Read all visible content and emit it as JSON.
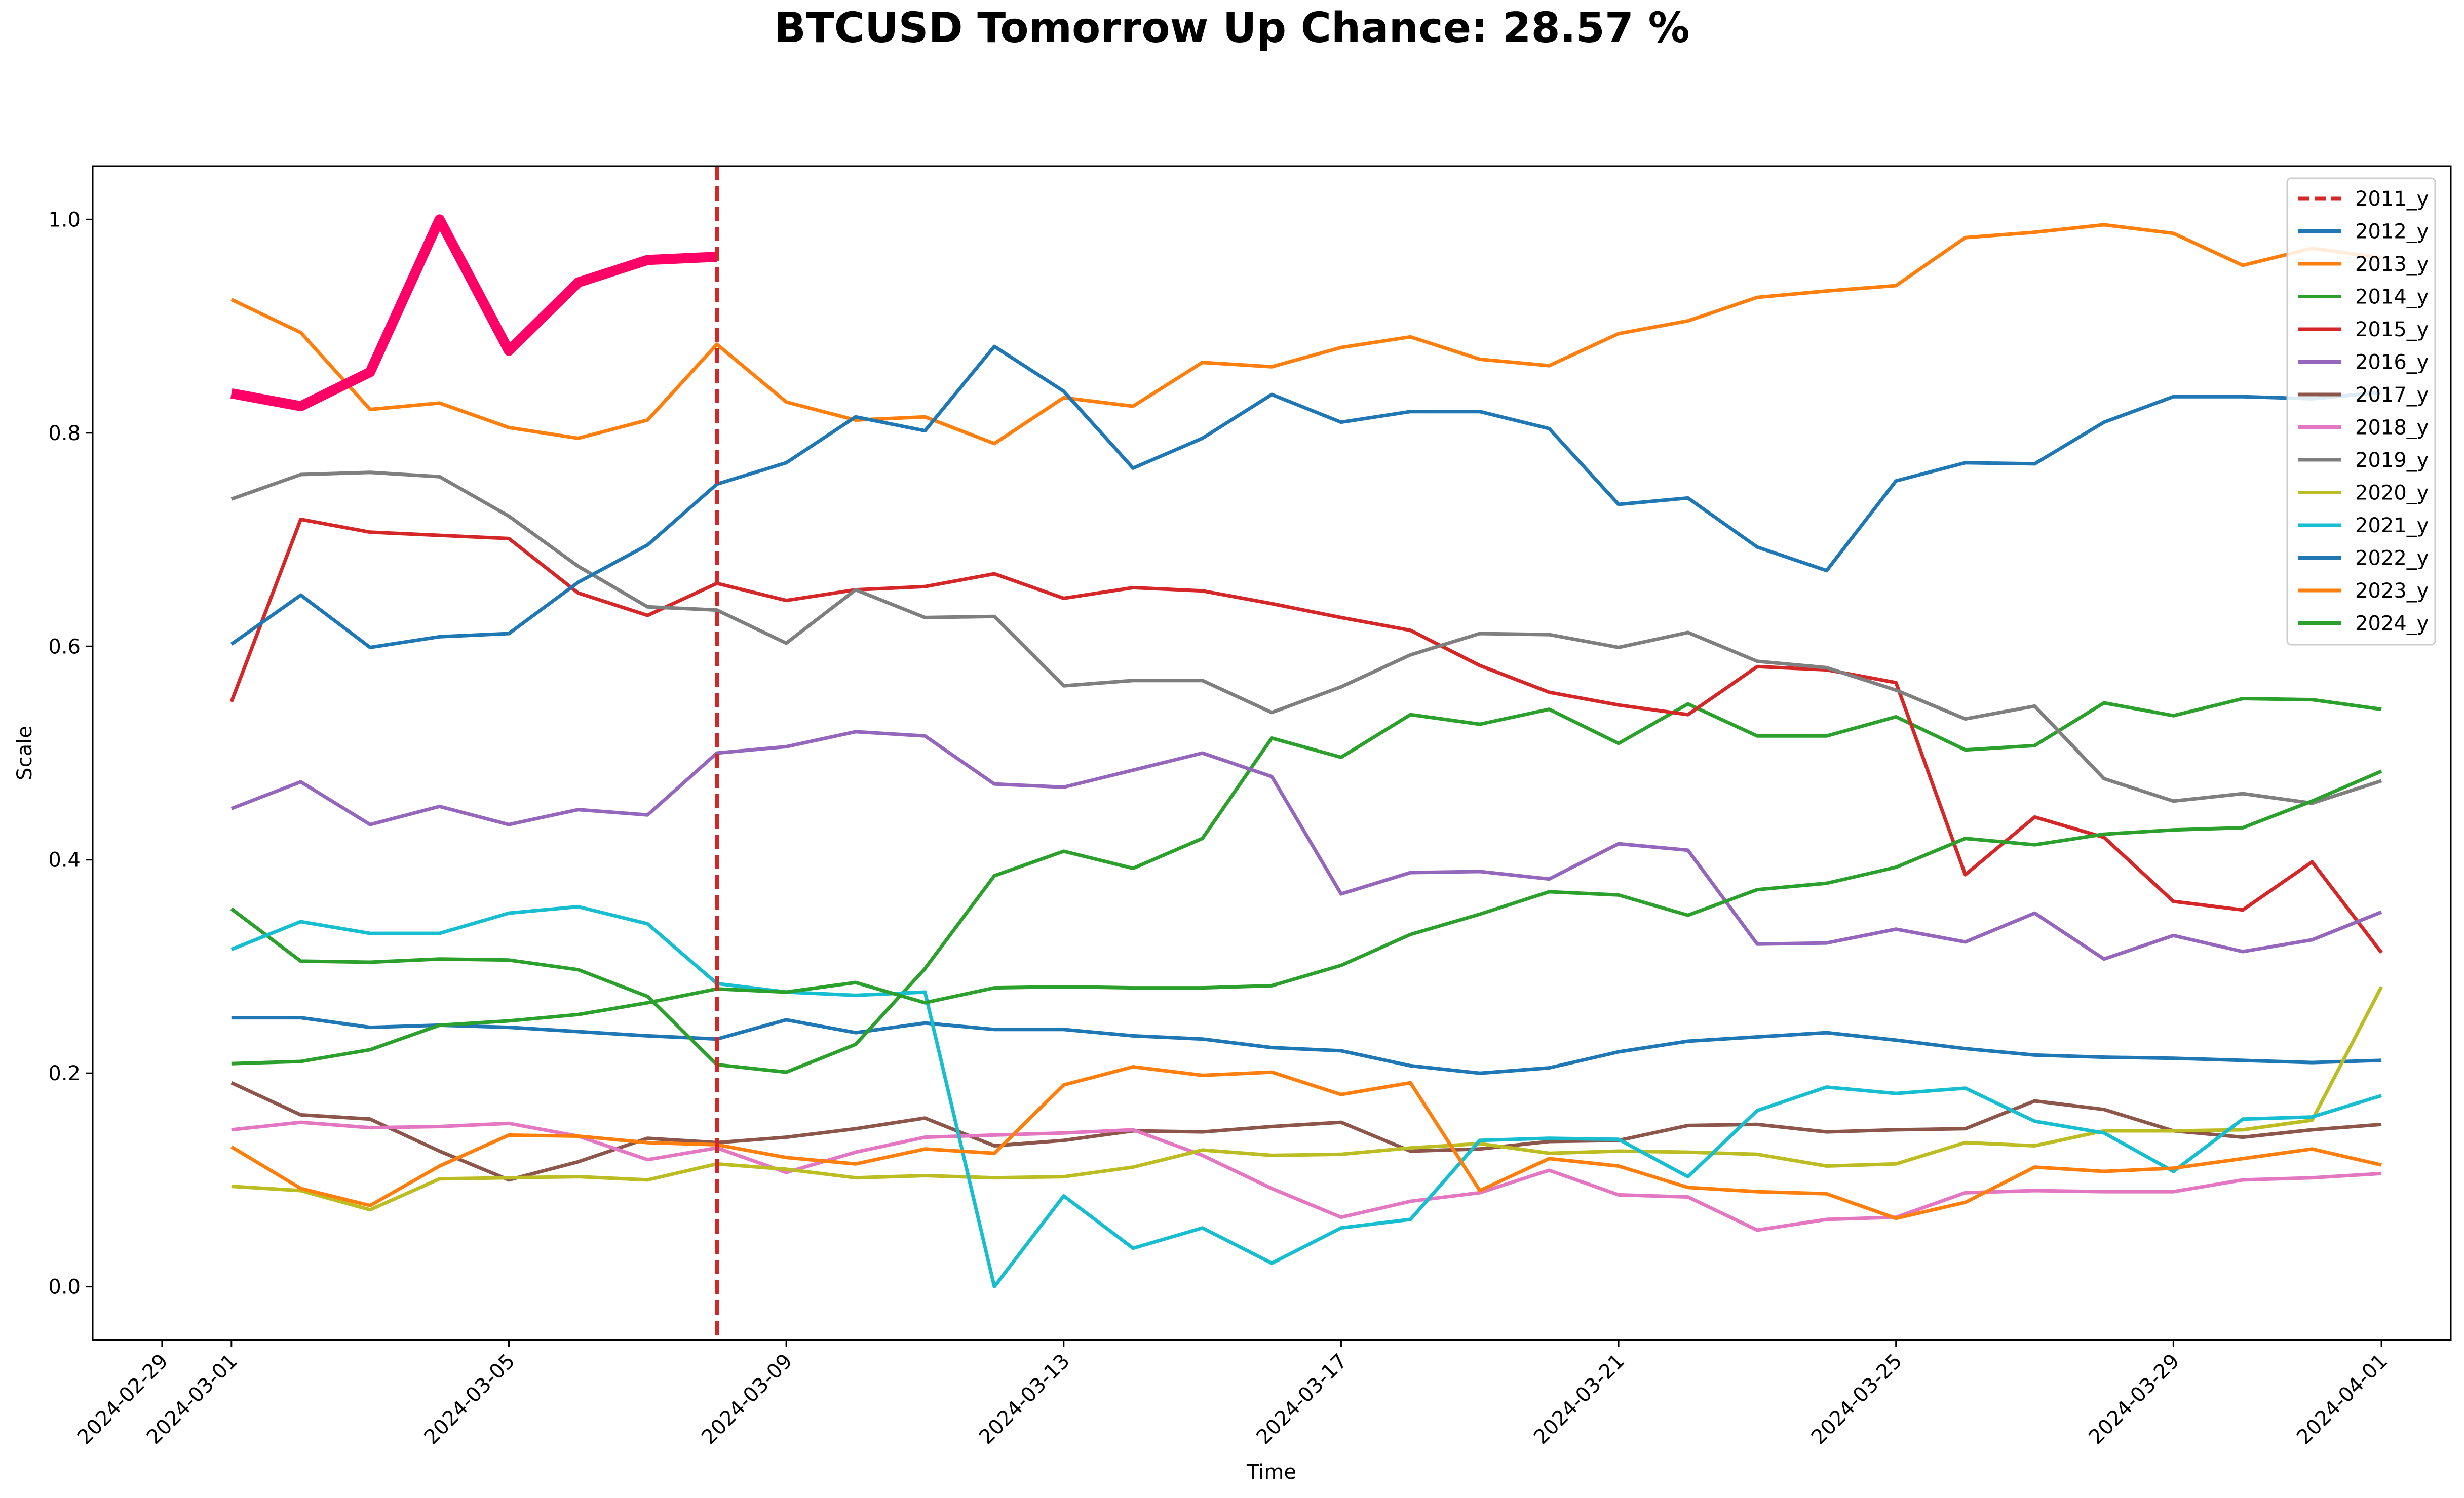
{
  "chart_data": {
    "type": "line",
    "title": "BTCUSD Tomorrow Up Chance: 28.57 %",
    "xlabel": "Time",
    "ylabel": "Scale",
    "xlim": [
      "2024-02-28",
      "2024-04-02"
    ],
    "ylim": [
      -0.05,
      1.05
    ],
    "x_ticks": [
      "2024-02-29",
      "2024-03-01",
      "2024-03-05",
      "2024-03-09",
      "2024-03-13",
      "2024-03-17",
      "2024-03-21",
      "2024-03-25",
      "2024-03-29",
      "2024-04-01"
    ],
    "y_ticks": [
      "0.0",
      "0.2",
      "0.4",
      "0.6",
      "0.8",
      "1.0"
    ],
    "legend_position": "top-right",
    "grid": false,
    "current_date_marker": {
      "name": "2011_y",
      "x": "2024-03-08",
      "color": "#d62728",
      "style": "dashed"
    },
    "x": [
      "2024-03-01",
      "2024-03-02",
      "2024-03-03",
      "2024-03-04",
      "2024-03-05",
      "2024-03-06",
      "2024-03-07",
      "2024-03-08",
      "2024-03-09",
      "2024-03-10",
      "2024-03-11",
      "2024-03-12",
      "2024-03-13",
      "2024-03-14",
      "2024-03-15",
      "2024-03-16",
      "2024-03-17",
      "2024-03-18",
      "2024-03-19",
      "2024-03-20",
      "2024-03-21",
      "2024-03-22",
      "2024-03-23",
      "2024-03-24",
      "2024-03-25",
      "2024-03-26",
      "2024-03-27",
      "2024-03-28",
      "2024-03-29",
      "2024-03-30",
      "2024-03-31",
      "2024-04-01"
    ],
    "series": [
      {
        "name": "2012_y",
        "color": "#1f77b4",
        "values": [
          0.252,
          0.252,
          0.243,
          0.245,
          0.243,
          0.239,
          0.235,
          0.232,
          0.25,
          0.238,
          0.247,
          0.241,
          0.241,
          0.235,
          0.232,
          0.224,
          0.221,
          0.207,
          0.2,
          0.205,
          0.22,
          0.23,
          0.234,
          0.238,
          0.231,
          0.223,
          0.217,
          0.215,
          0.214,
          0.212,
          0.21,
          0.212
        ]
      },
      {
        "name": "2013_y",
        "color": "#ff7f0e",
        "values": [
          0.925,
          0.894,
          0.822,
          0.828,
          0.805,
          0.795,
          0.812,
          0.883,
          0.829,
          0.812,
          0.815,
          0.79,
          0.833,
          0.825,
          0.866,
          0.862,
          0.88,
          0.89,
          0.869,
          0.863,
          0.893,
          0.905,
          0.927,
          0.933,
          0.938,
          0.983,
          0.988,
          0.995,
          0.987,
          0.957,
          0.973,
          0.964
        ]
      },
      {
        "name": "2014_y",
        "color": "#2ca02c",
        "values": [
          0.354,
          0.305,
          0.304,
          0.307,
          0.306,
          0.297,
          0.272,
          0.208,
          0.201,
          0.227,
          0.298,
          0.385,
          0.408,
          0.392,
          0.42,
          0.514,
          0.496,
          0.536,
          0.527,
          0.541,
          0.509,
          0.546,
          0.516,
          0.516,
          0.534,
          0.503,
          0.507,
          0.547,
          0.535,
          0.551,
          0.55,
          0.541
        ]
      },
      {
        "name": "2015_y",
        "color": "#d62728",
        "values": [
          0.548,
          0.719,
          0.707,
          0.704,
          0.701,
          0.65,
          0.629,
          0.659,
          0.643,
          0.653,
          0.656,
          0.668,
          0.645,
          0.655,
          0.652,
          0.64,
          0.627,
          0.615,
          0.582,
          0.557,
          0.545,
          0.536,
          0.581,
          0.578,
          0.566,
          0.386,
          0.44,
          0.421,
          0.361,
          0.353,
          0.398,
          0.313
        ]
      },
      {
        "name": "2016_y",
        "color": "#9467bd",
        "values": [
          0.448,
          0.473,
          0.433,
          0.45,
          0.433,
          0.447,
          0.442,
          0.5,
          0.506,
          0.52,
          0.516,
          0.471,
          0.468,
          0.484,
          0.5,
          0.478,
          0.368,
          0.388,
          0.389,
          0.382,
          0.415,
          0.409,
          0.321,
          0.322,
          0.335,
          0.323,
          0.35,
          0.307,
          0.329,
          0.314,
          0.325,
          0.351
        ]
      },
      {
        "name": "2017_y",
        "color": "#8c564b",
        "values": [
          0.191,
          0.161,
          0.157,
          0.127,
          0.1,
          0.117,
          0.139,
          0.135,
          0.14,
          0.148,
          0.158,
          0.132,
          0.137,
          0.146,
          0.145,
          0.15,
          0.154,
          0.127,
          0.129,
          0.136,
          0.137,
          0.151,
          0.152,
          0.145,
          0.147,
          0.148,
          0.174,
          0.166,
          0.146,
          0.14,
          0.147,
          0.152
        ]
      },
      {
        "name": "2018_y",
        "color": "#e377c2",
        "values": [
          0.147,
          0.154,
          0.149,
          0.15,
          0.153,
          0.141,
          0.119,
          0.13,
          0.107,
          0.126,
          0.14,
          0.142,
          0.144,
          0.147,
          0.123,
          0.092,
          0.065,
          0.08,
          0.088,
          0.109,
          0.086,
          0.084,
          0.053,
          0.063,
          0.065,
          0.088,
          0.09,
          0.089,
          0.089,
          0.1,
          0.102,
          0.106
        ]
      },
      {
        "name": "2019_y",
        "color": "#7f7f7f",
        "values": [
          0.738,
          0.761,
          0.763,
          0.759,
          0.722,
          0.675,
          0.637,
          0.634,
          0.603,
          0.653,
          0.627,
          0.628,
          0.563,
          0.568,
          0.568,
          0.538,
          0.562,
          0.592,
          0.612,
          0.611,
          0.599,
          0.613,
          0.586,
          0.58,
          0.559,
          0.532,
          0.544,
          0.476,
          0.455,
          0.462,
          0.453,
          0.474
        ]
      },
      {
        "name": "2020_y",
        "color": "#bcbd22",
        "values": [
          0.094,
          0.09,
          0.072,
          0.101,
          0.102,
          0.103,
          0.1,
          0.115,
          0.11,
          0.102,
          0.104,
          0.102,
          0.103,
          0.112,
          0.128,
          0.123,
          0.124,
          0.13,
          0.134,
          0.125,
          0.127,
          0.126,
          0.124,
          0.113,
          0.115,
          0.135,
          0.132,
          0.146,
          0.146,
          0.147,
          0.156,
          0.281
        ]
      },
      {
        "name": "2021_y",
        "color": "#17becf",
        "values": [
          0.316,
          0.342,
          0.331,
          0.331,
          0.35,
          0.356,
          0.34,
          0.284,
          0.276,
          0.273,
          0.276,
          0.0,
          0.085,
          0.036,
          0.055,
          0.022,
          0.055,
          0.063,
          0.137,
          0.139,
          0.138,
          0.103,
          0.165,
          0.187,
          0.181,
          0.186,
          0.155,
          0.144,
          0.108,
          0.157,
          0.159,
          0.179
        ]
      },
      {
        "name": "2022_y",
        "color": "#1f77b4",
        "values": [
          0.602,
          0.648,
          0.599,
          0.609,
          0.612,
          0.66,
          0.695,
          0.752,
          0.772,
          0.815,
          0.802,
          0.881,
          0.839,
          0.767,
          0.795,
          0.836,
          0.81,
          0.82,
          0.82,
          0.804,
          0.733,
          0.739,
          0.693,
          0.671,
          0.755,
          0.772,
          0.771,
          0.81,
          0.834,
          0.834,
          0.832,
          0.838
        ]
      },
      {
        "name": "2023_y",
        "color": "#ff7f0e",
        "values": [
          0.131,
          0.092,
          0.076,
          0.113,
          0.142,
          0.141,
          0.135,
          0.133,
          0.121,
          0.115,
          0.129,
          0.125,
          0.189,
          0.206,
          0.198,
          0.201,
          0.18,
          0.191,
          0.09,
          0.12,
          0.113,
          0.093,
          0.089,
          0.087,
          0.064,
          0.079,
          0.112,
          0.108,
          0.111,
          0.12,
          0.129,
          0.114
        ]
      },
      {
        "name": "2024_y",
        "color": "#2ca02c",
        "values": [
          0.209,
          0.211,
          0.222,
          0.245,
          0.249,
          0.255,
          0.266,
          0.279,
          0.276,
          0.285,
          0.266,
          0.28,
          0.281,
          0.28,
          0.28,
          0.282,
          0.301,
          0.33,
          0.349,
          0.37,
          0.367,
          0.348,
          0.372,
          0.378,
          0.393,
          0.42,
          0.414,
          0.424,
          0.428,
          0.43,
          0.455,
          0.483
        ]
      }
    ],
    "current_year_series": {
      "color": "#ff0066",
      "values": [
        0.837,
        0.825,
        0.857,
        1.0,
        0.877,
        0.941,
        0.962,
        0.965
      ]
    }
  }
}
